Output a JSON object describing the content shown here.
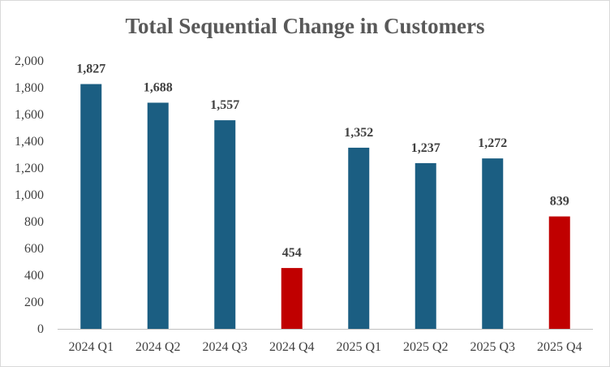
{
  "chart_data": {
    "type": "bar",
    "title": "Total Sequential Change in Customers",
    "xlabel": "",
    "ylabel": "",
    "categories": [
      "2024 Q1",
      "2024 Q2",
      "2024 Q3",
      "2024 Q4",
      "2025 Q1",
      "2025 Q2",
      "2025 Q3",
      "2025 Q4"
    ],
    "values": [
      1827,
      1688,
      1557,
      454,
      1352,
      1237,
      1272,
      839
    ],
    "data_labels": [
      "1,827",
      "1,688",
      "1,557",
      "454",
      "1,352",
      "1,237",
      "1,272",
      "839"
    ],
    "bar_colors": [
      "#1b5e82",
      "#1b5e82",
      "#1b5e82",
      "#c00000",
      "#1b5e82",
      "#1b5e82",
      "#1b5e82",
      "#c00000"
    ],
    "ylim": [
      0,
      2000
    ],
    "y_ticks": [
      0,
      200,
      400,
      600,
      800,
      1000,
      1200,
      1400,
      1600,
      1800,
      2000
    ],
    "y_tick_labels": [
      "0",
      "200",
      "400",
      "600",
      "800",
      "1,000",
      "1,200",
      "1,400",
      "1,600",
      "1,800",
      "2,000"
    ],
    "grid": false,
    "legend": "none"
  },
  "colors": {
    "primary_bar": "#1b5e82",
    "highlight_bar": "#c00000",
    "axis_line": "#bfbfbf",
    "text": "#404040",
    "title_text": "#595959"
  }
}
